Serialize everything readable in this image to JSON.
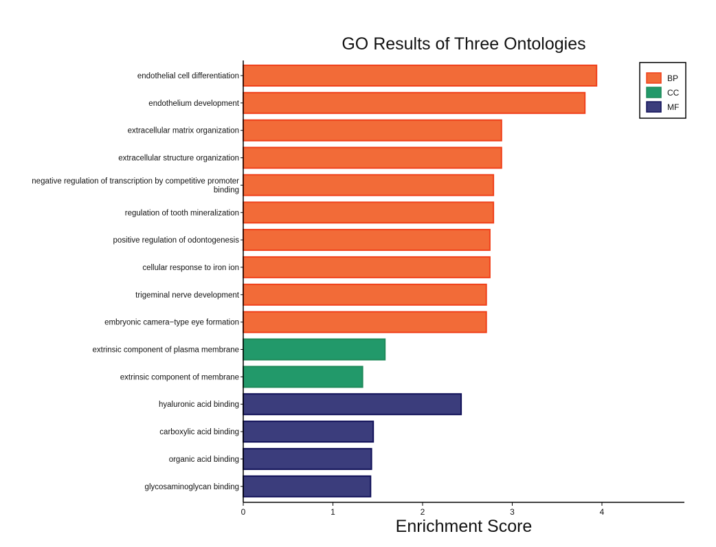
{
  "chart_data": {
    "type": "bar",
    "orientation": "horizontal",
    "title": "GO Results of Three Ontologies",
    "xlabel": "Enrichment Score",
    "ylabel": "",
    "xlim": [
      0,
      4.9
    ],
    "xticks": [
      0,
      1,
      2,
      3,
      4
    ],
    "grid": false,
    "legend_position": "top-right",
    "legend": [
      {
        "name": "BP",
        "color": "#F26B38",
        "stroke": "#F0401A"
      },
      {
        "name": "CC",
        "color": "#22996A",
        "stroke": "#1E8A5A"
      },
      {
        "name": "MF",
        "color": "#3B3D7C",
        "stroke": "#101058"
      }
    ],
    "categories": [
      {
        "label": [
          "endothelial cell differentiation"
        ],
        "value": 3.94,
        "group": "BP"
      },
      {
        "label": [
          "endothelium development"
        ],
        "value": 3.81,
        "group": "BP"
      },
      {
        "label": [
          "extracellular matrix organization"
        ],
        "value": 2.88,
        "group": "BP"
      },
      {
        "label": [
          "extracellular structure organization"
        ],
        "value": 2.88,
        "group": "BP"
      },
      {
        "label": [
          "negative regulation of transcription by competitive promoter",
          "binding"
        ],
        "value": 2.79,
        "group": "BP"
      },
      {
        "label": [
          "regulation of tooth mineralization"
        ],
        "value": 2.79,
        "group": "BP"
      },
      {
        "label": [
          "positive regulation of odontogenesis"
        ],
        "value": 2.75,
        "group": "BP"
      },
      {
        "label": [
          "cellular response to iron ion"
        ],
        "value": 2.75,
        "group": "BP"
      },
      {
        "label": [
          "trigeminal nerve development"
        ],
        "value": 2.71,
        "group": "BP"
      },
      {
        "label": [
          "embryonic camera−type eye formation"
        ],
        "value": 2.71,
        "group": "BP"
      },
      {
        "label": [
          "extrinsic component of plasma membrane"
        ],
        "value": 1.58,
        "group": "CC"
      },
      {
        "label": [
          "extrinsic component of membrane"
        ],
        "value": 1.33,
        "group": "CC"
      },
      {
        "label": [
          "hyaluronic acid binding"
        ],
        "value": 2.43,
        "group": "MF"
      },
      {
        "label": [
          "carboxylic acid binding"
        ],
        "value": 1.45,
        "group": "MF"
      },
      {
        "label": [
          "organic acid binding"
        ],
        "value": 1.43,
        "group": "MF"
      },
      {
        "label": [
          "glycosaminoglycan binding"
        ],
        "value": 1.42,
        "group": "MF"
      }
    ]
  }
}
